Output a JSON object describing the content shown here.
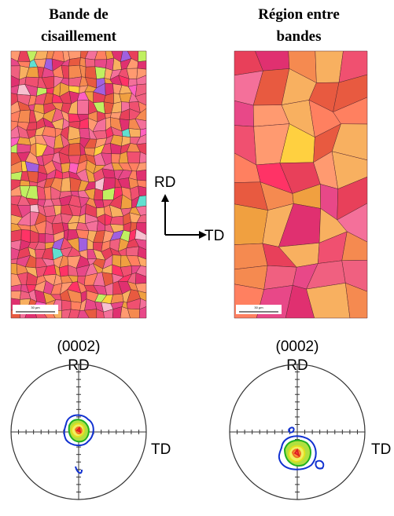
{
  "panels": [
    {
      "title_lines": [
        "Bande de",
        "cisaillement"
      ],
      "scale_bar": "30 µm",
      "pole_figure": {
        "plane": "(0002)",
        "top_label": "RD",
        "right_label": "TD"
      }
    },
    {
      "title_lines": [
        "Région entre",
        "bandes"
      ],
      "scale_bar": "30 µm",
      "pole_figure": {
        "plane": "(0002)",
        "top_label": "RD",
        "right_label": "TD"
      }
    }
  ],
  "axes": {
    "vertical": "RD",
    "horizontal": "TD"
  }
}
